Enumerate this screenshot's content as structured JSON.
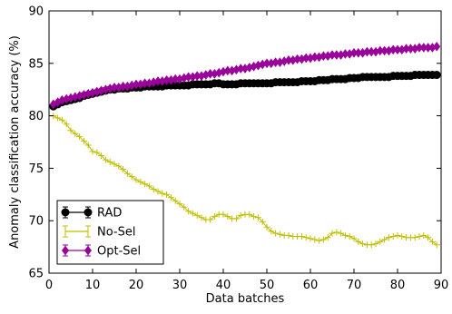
{
  "chart_data": {
    "type": "line",
    "title": "",
    "xlabel": "Data batches",
    "ylabel": "Anomaly classification accuracy (%)",
    "xlim": [
      0,
      90
    ],
    "ylim": [
      65,
      90
    ],
    "xticks": [
      "0",
      "10",
      "20",
      "30",
      "40",
      "50",
      "60",
      "70",
      "80",
      "90"
    ],
    "yticks": [
      "65",
      "70",
      "75",
      "80",
      "85",
      "90"
    ],
    "grid": false,
    "legend_position": "bottom-left",
    "series": [
      {
        "name": "RAD",
        "color": "#000000",
        "marker": "circle",
        "x": [
          1,
          2,
          3,
          4,
          5,
          6,
          7,
          8,
          9,
          10,
          11,
          12,
          13,
          14,
          15,
          16,
          17,
          18,
          19,
          20,
          21,
          22,
          23,
          24,
          25,
          26,
          27,
          28,
          29,
          30,
          31,
          32,
          33,
          34,
          35,
          36,
          37,
          38,
          39,
          40,
          41,
          42,
          43,
          44,
          45,
          46,
          47,
          48,
          49,
          50,
          51,
          52,
          53,
          54,
          55,
          56,
          57,
          58,
          59,
          60,
          61,
          62,
          63,
          64,
          65,
          66,
          67,
          68,
          69,
          70,
          71,
          72,
          73,
          74,
          75,
          76,
          77,
          78,
          79,
          80,
          81,
          82,
          83,
          84,
          85,
          86,
          87,
          88,
          89
        ],
        "y": [
          80.9,
          81.1,
          81.3,
          81.4,
          81.5,
          81.6,
          81.7,
          81.9,
          82.0,
          82.1,
          82.2,
          82.3,
          82.4,
          82.5,
          82.5,
          82.6,
          82.6,
          82.6,
          82.7,
          82.7,
          82.7,
          82.8,
          82.8,
          82.8,
          82.8,
          82.8,
          82.9,
          82.9,
          82.9,
          82.9,
          82.9,
          82.9,
          83.0,
          83.0,
          83.0,
          83.0,
          83.0,
          83.1,
          83.1,
          83.0,
          83.0,
          83.0,
          83.0,
          83.1,
          83.1,
          83.1,
          83.1,
          83.1,
          83.1,
          83.1,
          83.1,
          83.2,
          83.2,
          83.2,
          83.2,
          83.2,
          83.2,
          83.3,
          83.3,
          83.3,
          83.3,
          83.4,
          83.4,
          83.4,
          83.5,
          83.5,
          83.5,
          83.5,
          83.6,
          83.6,
          83.6,
          83.7,
          83.7,
          83.7,
          83.7,
          83.7,
          83.7,
          83.7,
          83.8,
          83.8,
          83.8,
          83.8,
          83.8,
          83.9,
          83.9,
          83.9,
          83.9,
          83.9,
          83.9
        ]
      },
      {
        "name": "No-Sel",
        "color": "#bfbf00",
        "marker": "plus",
        "x": [
          1,
          2,
          3,
          4,
          5,
          6,
          7,
          8,
          9,
          10,
          11,
          12,
          13,
          14,
          15,
          16,
          17,
          18,
          19,
          20,
          21,
          22,
          23,
          24,
          25,
          26,
          27,
          28,
          29,
          30,
          31,
          32,
          33,
          34,
          35,
          36,
          37,
          38,
          39,
          40,
          41,
          42,
          43,
          44,
          45,
          46,
          47,
          48,
          49,
          50,
          51,
          52,
          53,
          54,
          55,
          56,
          57,
          58,
          59,
          60,
          61,
          62,
          63,
          64,
          65,
          66,
          67,
          68,
          69,
          70,
          71,
          72,
          73,
          74,
          75,
          76,
          77,
          78,
          79,
          80,
          81,
          82,
          83,
          84,
          85,
          86,
          87,
          88,
          89
        ],
        "y": [
          80.0,
          79.8,
          79.6,
          79.2,
          78.6,
          78.3,
          78.0,
          77.6,
          77.2,
          76.6,
          76.5,
          76.2,
          75.8,
          75.6,
          75.4,
          75.2,
          74.9,
          74.5,
          74.2,
          73.9,
          73.7,
          73.5,
          73.3,
          73.0,
          72.8,
          72.6,
          72.5,
          72.2,
          71.9,
          71.6,
          71.3,
          70.9,
          70.7,
          70.5,
          70.3,
          70.1,
          70.1,
          70.4,
          70.6,
          70.6,
          70.4,
          70.2,
          70.2,
          70.5,
          70.6,
          70.6,
          70.4,
          70.3,
          69.9,
          69.4,
          69.0,
          68.8,
          68.7,
          68.6,
          68.6,
          68.5,
          68.5,
          68.5,
          68.4,
          68.3,
          68.2,
          68.1,
          68.2,
          68.4,
          68.8,
          68.9,
          68.8,
          68.6,
          68.5,
          68.3,
          68.0,
          67.8,
          67.7,
          67.7,
          67.8,
          68.0,
          68.2,
          68.4,
          68.5,
          68.6,
          68.5,
          68.4,
          68.4,
          68.4,
          68.5,
          68.6,
          68.4,
          68.0,
          67.7
        ]
      },
      {
        "name": "Opt-Sel",
        "color": "#9a009a",
        "marker": "diamond",
        "x": [
          1,
          2,
          3,
          4,
          5,
          6,
          7,
          8,
          9,
          10,
          11,
          12,
          13,
          14,
          15,
          16,
          17,
          18,
          19,
          20,
          21,
          22,
          23,
          24,
          25,
          26,
          27,
          28,
          29,
          30,
          31,
          32,
          33,
          34,
          35,
          36,
          37,
          38,
          39,
          40,
          41,
          42,
          43,
          44,
          45,
          46,
          47,
          48,
          49,
          50,
          51,
          52,
          53,
          54,
          55,
          56,
          57,
          58,
          59,
          60,
          61,
          62,
          63,
          64,
          65,
          66,
          67,
          68,
          69,
          70,
          71,
          72,
          73,
          74,
          75,
          76,
          77,
          78,
          79,
          80,
          81,
          82,
          83,
          84,
          85,
          86,
          87,
          88,
          89
        ],
        "y": [
          81.1,
          81.3,
          81.5,
          81.6,
          81.7,
          81.8,
          81.9,
          82.0,
          82.1,
          82.2,
          82.3,
          82.4,
          82.5,
          82.6,
          82.7,
          82.7,
          82.8,
          82.8,
          82.9,
          83.0,
          83.0,
          83.1,
          83.1,
          83.2,
          83.3,
          83.3,
          83.4,
          83.4,
          83.5,
          83.5,
          83.6,
          83.7,
          83.7,
          83.8,
          83.8,
          83.9,
          84.0,
          84.0,
          84.1,
          84.2,
          84.3,
          84.3,
          84.4,
          84.5,
          84.5,
          84.6,
          84.7,
          84.8,
          84.9,
          85.0,
          85.0,
          85.1,
          85.1,
          85.2,
          85.3,
          85.3,
          85.4,
          85.4,
          85.5,
          85.5,
          85.6,
          85.6,
          85.7,
          85.7,
          85.8,
          85.8,
          85.8,
          85.9,
          85.9,
          86.0,
          86.0,
          86.0,
          86.1,
          86.1,
          86.1,
          86.2,
          86.2,
          86.2,
          86.3,
          86.3,
          86.3,
          86.4,
          86.4,
          86.4,
          86.5,
          86.5,
          86.5,
          86.5,
          86.6
        ]
      }
    ]
  }
}
